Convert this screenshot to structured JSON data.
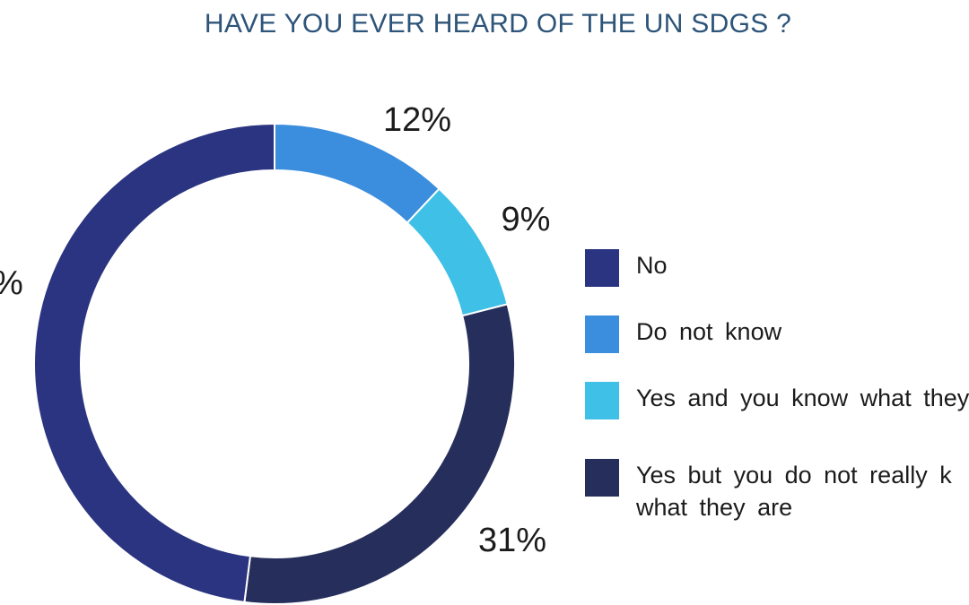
{
  "chart_data": {
    "type": "pie",
    "variant": "donut",
    "title": "HAVE YOU EVER HEARD OF THE UN SDGS ?",
    "categories": [
      "No",
      "Do not know",
      "Yes and you know what they",
      "Yes but you do not really k what they are"
    ],
    "values": [
      48,
      12,
      9,
      31
    ],
    "data_labels": [
      "%",
      "12%",
      "9%",
      "31%"
    ],
    "colors": [
      "#2b3480",
      "#3b8ddd",
      "#3fc0e6",
      "#262f5c"
    ],
    "legend_position": "right"
  }
}
